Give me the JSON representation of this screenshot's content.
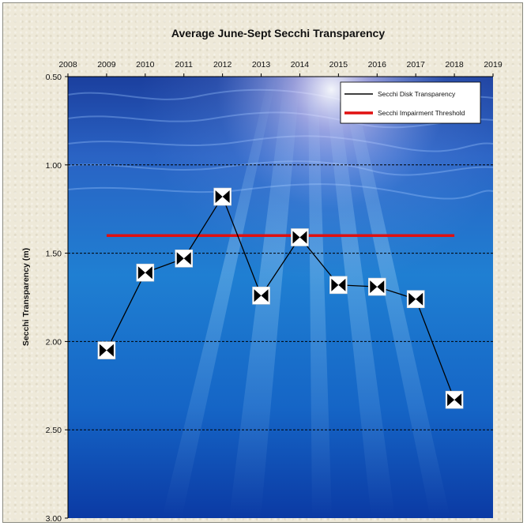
{
  "chart_data": {
    "type": "line",
    "title": "Average June-Sept Secchi Transparency",
    "xlabel": "",
    "ylabel": "Secchi Transparency (m)",
    "x_ticks": [
      "2008",
      "2009",
      "2010",
      "2011",
      "2012",
      "2013",
      "2014",
      "2015",
      "2016",
      "2017",
      "2018",
      "2019"
    ],
    "xlim": [
      2008,
      2019
    ],
    "y_ticks": [
      "0.50",
      "1.00",
      "1.50",
      "2.00",
      "2.50",
      "3.00"
    ],
    "ylim": [
      0.5,
      3.0
    ],
    "y_inverted": true,
    "y_gridlines_dashed": true,
    "series": [
      {
        "name": "Secchi Disk Transparency",
        "color": "#000000",
        "marker": "secchi-disk",
        "x": [
          2009,
          2010,
          2011,
          2012,
          2013,
          2014,
          2015,
          2016,
          2017,
          2018
        ],
        "y": [
          2.05,
          1.61,
          1.53,
          1.18,
          1.74,
          1.41,
          1.68,
          1.69,
          1.76,
          2.33
        ]
      },
      {
        "name": "Secchi Impairment Threshold",
        "color": "#e01010",
        "x": [
          2009,
          2018
        ],
        "y": [
          1.4,
          1.4
        ]
      }
    ],
    "legend_position": "top-right",
    "background": "underwater-photo"
  }
}
